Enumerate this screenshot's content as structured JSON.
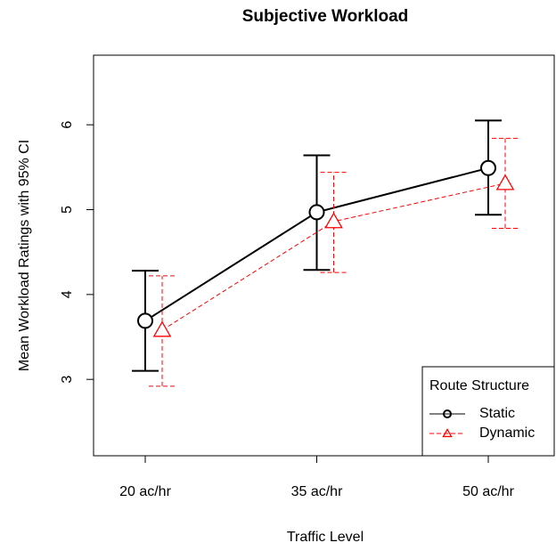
{
  "chart_data": {
    "type": "line",
    "title": "Subjective Workload",
    "x_label": "Traffic Level",
    "y_label": "Mean Workload Ratings with 95% CI",
    "categories": [
      "20 ac/hr",
      "35 ac/hr",
      "50 ac/hr"
    ],
    "ylim": [
      2.1,
      6.82
    ],
    "yticks": [
      3,
      4,
      5,
      6
    ],
    "legend_title": "Route Structure",
    "legend_position": "bottomright",
    "series": [
      {
        "name": "Static",
        "color": "#000000",
        "marker": "circle",
        "dashed": false,
        "values": [
          3.69,
          4.97,
          5.49
        ],
        "ci_lower": [
          3.1,
          4.29,
          4.94
        ],
        "ci_upper": [
          4.28,
          5.64,
          6.05
        ]
      },
      {
        "name": "Dynamic",
        "color": "#ff0000",
        "marker": "triangle",
        "dashed": true,
        "values": [
          3.58,
          4.86,
          5.31
        ],
        "ci_lower": [
          2.92,
          4.26,
          4.78
        ],
        "ci_upper": [
          4.22,
          5.44,
          5.84
        ]
      }
    ]
  }
}
